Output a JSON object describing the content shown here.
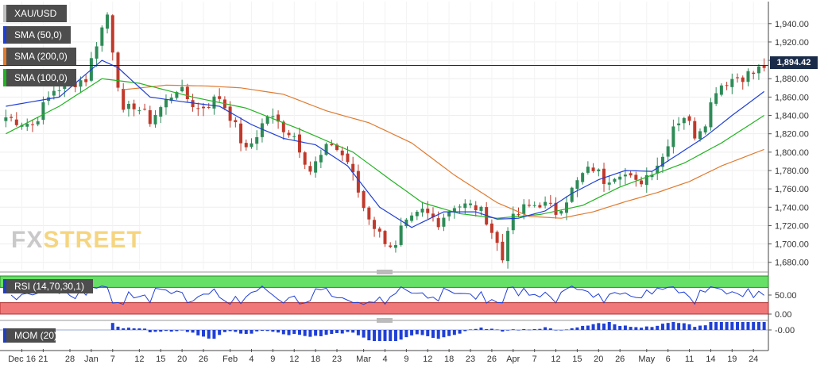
{
  "symbol": "XAU/USD",
  "brand": {
    "prefix": "FX",
    "suffix": "STREET"
  },
  "current_price_label": "1,894.42",
  "legend": [
    {
      "label": "SMA (50,0)",
      "color": "#1f3fd6"
    },
    {
      "label": "SMA (200,0)",
      "color": "#e07a2e"
    },
    {
      "label": "SMA (100,0)",
      "color": "#22b322"
    }
  ],
  "rsi": {
    "label": "RSI (14,70,30,1)",
    "ticks": [
      "50.00",
      "0.00"
    ]
  },
  "mom": {
    "label": "MOM (20)",
    "ticks": [
      "-0.00"
    ]
  },
  "colors": {
    "candle_up": "#2e8b57",
    "candle_down": "#c0392b",
    "rsi_line": "#1f3fd6",
    "rsi_overbought": "#66e066",
    "rsi_oversold": "#f07878",
    "mom_bar": "#1f3fd6"
  },
  "chart_data": {
    "type": "candlestick",
    "ylim": [
      1672,
      1964
    ],
    "yticks": [
      1680,
      1700,
      1720,
      1740,
      1760,
      1780,
      1800,
      1820,
      1840,
      1860,
      1880,
      1900,
      1920,
      1940
    ],
    "ytick_labels": [
      "1,680.00",
      "1,700.00",
      "1,720.00",
      "1,740.00",
      "1,760.00",
      "1,780.00",
      "1,800.00",
      "1,820.00",
      "1,840.00",
      "1,860.00",
      "1,880.00",
      "1,900.00",
      "1,920.00",
      "1,940.00"
    ],
    "current_price": 1894.42,
    "x_tick_labels": [
      {
        "i": 3,
        "label": "Dec 16"
      },
      {
        "i": 7,
        "label": "21"
      },
      {
        "i": 12,
        "label": "28"
      },
      {
        "i": 16,
        "label": "Jan"
      },
      {
        "i": 20,
        "label": "7"
      },
      {
        "i": 25,
        "label": "12"
      },
      {
        "i": 29,
        "label": "15"
      },
      {
        "i": 33,
        "label": "20"
      },
      {
        "i": 37,
        "label": "26"
      },
      {
        "i": 42,
        "label": "Feb"
      },
      {
        "i": 46,
        "label": "4"
      },
      {
        "i": 50,
        "label": "9"
      },
      {
        "i": 54,
        "label": "12"
      },
      {
        "i": 58,
        "label": "18"
      },
      {
        "i": 62,
        "label": "23"
      },
      {
        "i": 67,
        "label": "Mar"
      },
      {
        "i": 71,
        "label": "4"
      },
      {
        "i": 75,
        "label": "9"
      },
      {
        "i": 79,
        "label": "12"
      },
      {
        "i": 83,
        "label": "18"
      },
      {
        "i": 87,
        "label": "23"
      },
      {
        "i": 91,
        "label": "26"
      },
      {
        "i": 95,
        "label": "Apr"
      },
      {
        "i": 99,
        "label": "7"
      },
      {
        "i": 103,
        "label": "12"
      },
      {
        "i": 107,
        "label": "15"
      },
      {
        "i": 111,
        "label": "20"
      },
      {
        "i": 115,
        "label": "26"
      },
      {
        "i": 120,
        "label": "May"
      },
      {
        "i": 124,
        "label": "6"
      },
      {
        "i": 128,
        "label": "11"
      },
      {
        "i": 132,
        "label": "14"
      },
      {
        "i": 136,
        "label": "19"
      },
      {
        "i": 140,
        "label": "24"
      }
    ],
    "close_keys": [
      [
        0,
        1838
      ],
      [
        5,
        1830
      ],
      [
        9,
        1868
      ],
      [
        12,
        1875
      ],
      [
        15,
        1880
      ],
      [
        17,
        1920
      ],
      [
        19,
        1950
      ],
      [
        20,
        1913
      ],
      [
        22,
        1840
      ],
      [
        24,
        1852
      ],
      [
        27,
        1835
      ],
      [
        30,
        1855
      ],
      [
        32,
        1870
      ],
      [
        36,
        1847
      ],
      [
        40,
        1860
      ],
      [
        42,
        1840
      ],
      [
        45,
        1800
      ],
      [
        49,
        1840
      ],
      [
        54,
        1818
      ],
      [
        57,
        1780
      ],
      [
        61,
        1810
      ],
      [
        64,
        1790
      ],
      [
        67,
        1740
      ],
      [
        70,
        1710
      ],
      [
        73,
        1695
      ],
      [
        74,
        1715
      ],
      [
        78,
        1735
      ],
      [
        81,
        1725
      ],
      [
        84,
        1743
      ],
      [
        88,
        1740
      ],
      [
        90,
        1728
      ],
      [
        92,
        1700
      ],
      [
        93,
        1683
      ],
      [
        94,
        1720
      ],
      [
        97,
        1738
      ],
      [
        100,
        1745
      ],
      [
        103,
        1735
      ],
      [
        105,
        1750
      ],
      [
        108,
        1775
      ],
      [
        110,
        1783
      ],
      [
        112,
        1770
      ],
      [
        115,
        1780
      ],
      [
        118,
        1765
      ],
      [
        120,
        1775
      ],
      [
        123,
        1795
      ],
      [
        125,
        1830
      ],
      [
        127,
        1840
      ],
      [
        129,
        1820
      ],
      [
        131,
        1835
      ],
      [
        133,
        1870
      ],
      [
        135,
        1878
      ],
      [
        137,
        1882
      ],
      [
        140,
        1886
      ],
      [
        142,
        1894
      ]
    ],
    "sma50_keys": [
      [
        0,
        1850
      ],
      [
        10,
        1860
      ],
      [
        18,
        1900
      ],
      [
        21,
        1892
      ],
      [
        27,
        1860
      ],
      [
        33,
        1855
      ],
      [
        40,
        1850
      ],
      [
        46,
        1830
      ],
      [
        52,
        1815
      ],
      [
        58,
        1808
      ],
      [
        64,
        1785
      ],
      [
        70,
        1740
      ],
      [
        76,
        1718
      ],
      [
        82,
        1735
      ],
      [
        88,
        1735
      ],
      [
        92,
        1727
      ],
      [
        96,
        1728
      ],
      [
        101,
        1736
      ],
      [
        106,
        1755
      ],
      [
        111,
        1770
      ],
      [
        116,
        1780
      ],
      [
        121,
        1779
      ],
      [
        126,
        1798
      ],
      [
        131,
        1817
      ],
      [
        136,
        1840
      ],
      [
        142,
        1866
      ]
    ],
    "sma100_keys": [
      [
        0,
        1820
      ],
      [
        10,
        1850
      ],
      [
        18,
        1880
      ],
      [
        25,
        1875
      ],
      [
        35,
        1860
      ],
      [
        45,
        1848
      ],
      [
        55,
        1825
      ],
      [
        65,
        1800
      ],
      [
        72,
        1770
      ],
      [
        78,
        1745
      ],
      [
        85,
        1733
      ],
      [
        92,
        1728
      ],
      [
        100,
        1732
      ],
      [
        108,
        1742
      ],
      [
        115,
        1762
      ],
      [
        121,
        1775
      ],
      [
        127,
        1788
      ],
      [
        134,
        1810
      ],
      [
        142,
        1840
      ]
    ],
    "sma200_keys": [
      [
        22,
        1868
      ],
      [
        30,
        1873
      ],
      [
        38,
        1872
      ],
      [
        44,
        1870
      ],
      [
        52,
        1863
      ],
      [
        60,
        1845
      ],
      [
        68,
        1832
      ],
      [
        76,
        1810
      ],
      [
        84,
        1775
      ],
      [
        92,
        1745
      ],
      [
        98,
        1730
      ],
      [
        104,
        1728
      ],
      [
        110,
        1735
      ],
      [
        116,
        1746
      ],
      [
        122,
        1756
      ],
      [
        128,
        1768
      ],
      [
        134,
        1785
      ],
      [
        142,
        1803
      ]
    ]
  }
}
